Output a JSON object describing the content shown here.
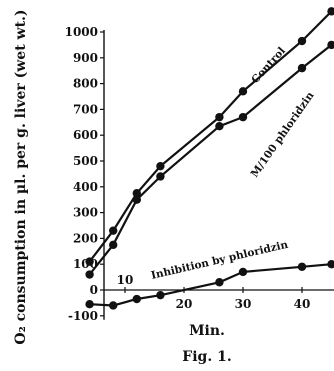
{
  "chart_data": {
    "type": "line",
    "xlabel": "Min.",
    "ylabel": "O₂ consumption in µl. per g. liver (wet wt.)",
    "caption": "Fig. 1.",
    "xlim": [
      2,
      46
    ],
    "ylim": [
      -100,
      1000
    ],
    "x_ticks": [
      10,
      20,
      30,
      40
    ],
    "y_ticks": [
      -100,
      0,
      100,
      200,
      300,
      400,
      500,
      600,
      700,
      800,
      900,
      1000
    ],
    "grid": false,
    "series": [
      {
        "name": "Control",
        "x": [
          4,
          8,
          12,
          16,
          26,
          30,
          40,
          45
        ],
        "y": [
          110,
          230,
          375,
          480,
          670,
          770,
          965,
          1080
        ]
      },
      {
        "name": "M/100 phloridzin",
        "x": [
          4,
          8,
          12,
          16,
          26,
          30,
          40,
          45
        ],
        "y": [
          60,
          175,
          350,
          440,
          635,
          670,
          860,
          950
        ]
      },
      {
        "name": "Inhibition by phloridzin",
        "x": [
          4,
          8,
          12,
          16,
          26,
          30,
          40,
          45
        ],
        "y": [
          -55,
          -60,
          -35,
          -20,
          30,
          70,
          90,
          100
        ]
      }
    ]
  }
}
